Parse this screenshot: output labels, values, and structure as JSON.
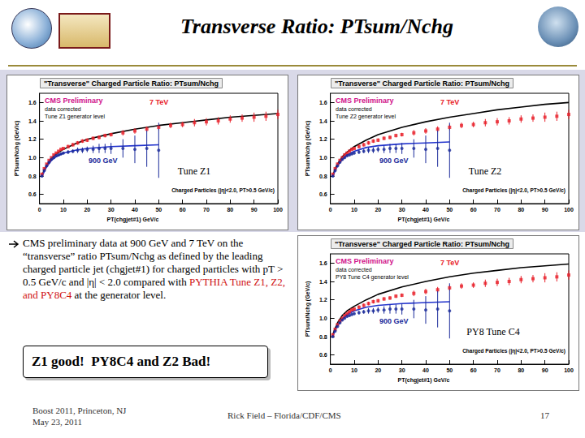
{
  "header": {
    "title": "Transverse Ratio: PTsum/Nchg"
  },
  "chart_data": [
    {
      "type": "scatter",
      "title": "\"Transverse\" Charged Particle Ratio: PTsum/Nchg",
      "x_label": "PT(chgjet#1) GeV/c",
      "y_label": "PTsum/Nchg (GeV/c)",
      "xlim": [
        0,
        100
      ],
      "xticks": [
        0,
        10,
        20,
        30,
        40,
        50,
        60,
        70,
        80,
        90,
        100
      ],
      "ylim": [
        0.5,
        1.7
      ],
      "yticks": [
        0.6,
        0.8,
        {
          "value": 1,
          "label": "1.0"
        },
        1.2,
        1.4,
        1.6
      ],
      "grid": false,
      "annotations": {
        "label": "CMS Preliminary",
        "note": "data corrected",
        "generator": "Tune Z1 generator level",
        "selection": "Charged Particles (|η|<2.0, PT>0.5 GeV/c)"
      },
      "overlay": "Tune Z1",
      "series": [
        {
          "type": "line",
          "line_style": "solid",
          "color": "#000000",
          "x": [
            1,
            2,
            3,
            5,
            7,
            10,
            15,
            20,
            30,
            40,
            50,
            60,
            70,
            80,
            90,
            100
          ],
          "values": [
            0.8,
            0.87,
            0.92,
            0.99,
            1.04,
            1.09,
            1.15,
            1.2,
            1.26,
            1.31,
            1.35,
            1.38,
            1.41,
            1.44,
            1.46,
            1.48
          ]
        },
        {
          "type": "line",
          "line_style": "solid",
          "color": "#2233cc",
          "x": [
            1,
            2,
            3,
            5,
            7,
            10,
            15,
            20,
            30,
            40,
            50
          ],
          "values": [
            0.79,
            0.85,
            0.9,
            0.97,
            1.01,
            1.05,
            1.08,
            1.1,
            1.12,
            1.13,
            1.14
          ]
        },
        {
          "name": "7 TeV",
          "type": "scatter",
          "marker": "square",
          "color": "#e8202a",
          "x": [
            1,
            2,
            3,
            4,
            5,
            6,
            7,
            8,
            9,
            10,
            12,
            14,
            16,
            18,
            20,
            22.5,
            25,
            27.5,
            30,
            35,
            40,
            45,
            50,
            55,
            60,
            65,
            70,
            75,
            80,
            85,
            90,
            95,
            100
          ],
          "values": [
            0.82,
            0.88,
            0.93,
            0.97,
            1.0,
            1.03,
            1.05,
            1.07,
            1.09,
            1.1,
            1.12,
            1.14,
            1.16,
            1.18,
            1.19,
            1.21,
            1.22,
            1.24,
            1.25,
            1.27,
            1.29,
            1.31,
            1.33,
            1.35,
            1.36,
            1.38,
            1.39,
            1.4,
            1.42,
            1.43,
            1.44,
            1.45,
            1.47
          ],
          "errors": [
            0.01,
            0.01,
            0.01,
            0.01,
            0.01,
            0.01,
            0.01,
            0.01,
            0.01,
            0.01,
            0.02,
            0.02,
            0.02,
            0.02,
            0.02,
            0.02,
            0.02,
            0.02,
            0.02,
            0.03,
            0.03,
            0.03,
            0.03,
            0.03,
            0.03,
            0.04,
            0.04,
            0.04,
            0.04,
            0.04,
            0.05,
            0.05,
            0.05
          ]
        },
        {
          "name": "900 GeV",
          "type": "scatter",
          "marker": "circle",
          "color": "#1a2a9a",
          "x": [
            1,
            2,
            3,
            4,
            5,
            6,
            7,
            8,
            9,
            10,
            12,
            14,
            16,
            18,
            20,
            22.5,
            25,
            27.5,
            30,
            35,
            40,
            45,
            50
          ],
          "values": [
            0.8,
            0.86,
            0.91,
            0.95,
            0.98,
            1.0,
            1.02,
            1.03,
            1.04,
            1.05,
            1.06,
            1.07,
            1.08,
            1.08,
            1.09,
            1.09,
            1.1,
            1.1,
            1.1,
            1.1,
            1.09,
            1.1,
            1.08
          ],
          "errors": [
            0.01,
            0.01,
            0.01,
            0.01,
            0.01,
            0.01,
            0.01,
            0.01,
            0.01,
            0.01,
            0.02,
            0.02,
            0.03,
            0.03,
            0.03,
            0.04,
            0.05,
            0.05,
            0.06,
            0.1,
            0.15,
            0.2,
            0.3
          ]
        }
      ]
    },
    {
      "type": "scatter",
      "title": "\"Transverse\" Charged Particle Ratio: PTsum/Nchg",
      "x_label": "PT(chgjet#1) GeV/c",
      "y_label": "PTsum/Nchg (GeV/c)",
      "xlim": [
        0,
        100
      ],
      "xticks": [
        0,
        10,
        20,
        30,
        40,
        50,
        60,
        70,
        80,
        90,
        100
      ],
      "ylim": [
        0.5,
        1.7
      ],
      "yticks": [
        0.6,
        0.8,
        {
          "value": 1,
          "label": "1.0"
        },
        1.2,
        1.4,
        1.6
      ],
      "grid": false,
      "annotations": {
        "label": "CMS Preliminary",
        "note": "data corrected",
        "generator": "Tune Z2 generator level",
        "selection": "Charged Particles (|η|<2.0, PT>0.5 GeV/c)"
      },
      "overlay": "Tune Z2",
      "series": [
        {
          "type": "line",
          "line_style": "solid",
          "color": "#000000",
          "x": [
            1,
            2,
            3,
            5,
            7,
            10,
            15,
            20,
            30,
            40,
            50,
            60,
            70,
            80,
            90,
            100
          ],
          "values": [
            0.8,
            0.88,
            0.93,
            1.01,
            1.06,
            1.12,
            1.19,
            1.25,
            1.33,
            1.39,
            1.44,
            1.48,
            1.52,
            1.55,
            1.58,
            1.6
          ]
        },
        {
          "type": "line",
          "line_style": "solid",
          "color": "#2233cc",
          "x": [
            1,
            2,
            3,
            5,
            7,
            10,
            15,
            20,
            30,
            40,
            50
          ],
          "values": [
            0.79,
            0.86,
            0.91,
            0.98,
            1.03,
            1.07,
            1.11,
            1.13,
            1.15,
            1.16,
            1.17
          ]
        },
        {
          "name": "7 TeV",
          "type": "scatter",
          "marker": "square",
          "color": "#e8202a",
          "x": [
            1,
            2,
            3,
            4,
            5,
            6,
            7,
            8,
            9,
            10,
            12,
            14,
            16,
            18,
            20,
            22.5,
            25,
            27.5,
            30,
            35,
            40,
            45,
            50,
            55,
            60,
            65,
            70,
            75,
            80,
            85,
            90,
            95,
            100
          ],
          "values": [
            0.82,
            0.88,
            0.93,
            0.97,
            1.0,
            1.03,
            1.05,
            1.07,
            1.09,
            1.1,
            1.12,
            1.14,
            1.16,
            1.18,
            1.19,
            1.21,
            1.22,
            1.24,
            1.25,
            1.27,
            1.29,
            1.31,
            1.33,
            1.35,
            1.36,
            1.38,
            1.39,
            1.4,
            1.42,
            1.43,
            1.44,
            1.45,
            1.47
          ],
          "errors": [
            0.01,
            0.01,
            0.01,
            0.01,
            0.01,
            0.01,
            0.01,
            0.01,
            0.01,
            0.01,
            0.02,
            0.02,
            0.02,
            0.02,
            0.02,
            0.02,
            0.02,
            0.02,
            0.02,
            0.03,
            0.03,
            0.03,
            0.03,
            0.03,
            0.03,
            0.04,
            0.04,
            0.04,
            0.04,
            0.04,
            0.05,
            0.05,
            0.05
          ]
        },
        {
          "name": "900 GeV",
          "type": "scatter",
          "marker": "circle",
          "color": "#1a2a9a",
          "x": [
            1,
            2,
            3,
            4,
            5,
            6,
            7,
            8,
            9,
            10,
            12,
            14,
            16,
            18,
            20,
            22.5,
            25,
            27.5,
            30,
            35,
            40,
            45,
            50
          ],
          "values": [
            0.8,
            0.86,
            0.91,
            0.95,
            0.98,
            1.0,
            1.02,
            1.03,
            1.04,
            1.05,
            1.06,
            1.07,
            1.08,
            1.08,
            1.09,
            1.09,
            1.1,
            1.1,
            1.1,
            1.1,
            1.09,
            1.1,
            1.08
          ],
          "errors": [
            0.01,
            0.01,
            0.01,
            0.01,
            0.01,
            0.01,
            0.01,
            0.01,
            0.01,
            0.01,
            0.02,
            0.02,
            0.03,
            0.03,
            0.03,
            0.04,
            0.05,
            0.05,
            0.06,
            0.1,
            0.15,
            0.2,
            0.3
          ]
        }
      ]
    },
    {
      "type": "scatter",
      "title": "\"Transverse\" Charged Particle Ratio: PTsum/Nchg",
      "x_label": "PT(chgjet#1) GeV/c",
      "y_label": "PTsum/Nchg (GeV/c)",
      "xlim": [
        0,
        100
      ],
      "xticks": [
        0,
        10,
        20,
        30,
        40,
        50,
        60,
        70,
        80,
        90,
        100
      ],
      "ylim": [
        0.5,
        1.7
      ],
      "yticks": [
        0.6,
        0.8,
        {
          "value": 1,
          "label": "1.0"
        },
        1.2,
        1.4,
        1.6
      ],
      "grid": false,
      "annotations": {
        "label": "CMS Preliminary",
        "note": "data corrected",
        "generator": "PY8 Tune C4 generator level",
        "selection": "Charged Particles (|η|<2.0, PT>0.5 GeV/c)"
      },
      "overlay": "PY8 Tune C4",
      "series": [
        {
          "type": "line",
          "line_style": "solid",
          "color": "#000000",
          "x": [
            1,
            2,
            3,
            5,
            7,
            10,
            15,
            20,
            30,
            40,
            50,
            60,
            70,
            80,
            90,
            100
          ],
          "values": [
            0.82,
            0.89,
            0.95,
            1.03,
            1.08,
            1.13,
            1.2,
            1.26,
            1.34,
            1.4,
            1.45,
            1.49,
            1.52,
            1.55,
            1.57,
            1.59
          ]
        },
        {
          "type": "line",
          "line_style": "solid",
          "color": "#2233cc",
          "x": [
            1,
            2,
            3,
            5,
            7,
            10,
            15,
            20,
            30,
            40,
            50
          ],
          "values": [
            0.8,
            0.87,
            0.92,
            0.99,
            1.04,
            1.08,
            1.12,
            1.14,
            1.16,
            1.17,
            1.18
          ]
        },
        {
          "name": "7 TeV",
          "type": "scatter",
          "marker": "square",
          "color": "#e8202a",
          "x": [
            1,
            2,
            3,
            4,
            5,
            6,
            7,
            8,
            9,
            10,
            12,
            14,
            16,
            18,
            20,
            22.5,
            25,
            27.5,
            30,
            35,
            40,
            45,
            50,
            55,
            60,
            65,
            70,
            75,
            80,
            85,
            90,
            95,
            100
          ],
          "values": [
            0.82,
            0.88,
            0.93,
            0.97,
            1.0,
            1.03,
            1.05,
            1.07,
            1.09,
            1.1,
            1.12,
            1.14,
            1.16,
            1.18,
            1.19,
            1.21,
            1.22,
            1.24,
            1.25,
            1.27,
            1.29,
            1.31,
            1.33,
            1.35,
            1.36,
            1.38,
            1.39,
            1.4,
            1.42,
            1.43,
            1.44,
            1.45,
            1.47
          ],
          "errors": [
            0.01,
            0.01,
            0.01,
            0.01,
            0.01,
            0.01,
            0.01,
            0.01,
            0.01,
            0.01,
            0.02,
            0.02,
            0.02,
            0.02,
            0.02,
            0.02,
            0.02,
            0.02,
            0.02,
            0.03,
            0.03,
            0.03,
            0.03,
            0.03,
            0.03,
            0.04,
            0.04,
            0.04,
            0.04,
            0.04,
            0.05,
            0.05,
            0.05
          ]
        },
        {
          "name": "900 GeV",
          "type": "scatter",
          "marker": "circle",
          "color": "#1a2a9a",
          "x": [
            1,
            2,
            3,
            4,
            5,
            6,
            7,
            8,
            9,
            10,
            12,
            14,
            16,
            18,
            20,
            22.5,
            25,
            27.5,
            30,
            35,
            40,
            45,
            50
          ],
          "values": [
            0.8,
            0.86,
            0.91,
            0.95,
            0.98,
            1.0,
            1.02,
            1.03,
            1.04,
            1.05,
            1.06,
            1.07,
            1.08,
            1.08,
            1.09,
            1.09,
            1.1,
            1.1,
            1.1,
            1.1,
            1.09,
            1.1,
            1.08
          ],
          "errors": [
            0.01,
            0.01,
            0.01,
            0.01,
            0.01,
            0.01,
            0.01,
            0.01,
            0.01,
            0.01,
            0.02,
            0.02,
            0.03,
            0.03,
            0.03,
            0.04,
            0.05,
            0.05,
            0.06,
            0.1,
            0.15,
            0.2,
            0.3
          ]
        }
      ]
    }
  ],
  "bullet": {
    "text": "CMS preliminary data at 900 GeV and 7 TeV on the “transverse” ratio PTsum/Nchg as defined by the leading charged particle jet (chgjet#1) for charged particles with pT > 0.5 GeV/c and |η| < 2.0 compared with ",
    "highlight": "PYTHIA Tune Z1, Z2, and PY8C4",
    "tail": " at the generator level."
  },
  "conclusion": "Z1 good!  PY8C4 and Z2 Bad!",
  "footer": {
    "event": "Boost 2011, Princeton, NJ",
    "date": "May 23, 2011",
    "author": "Rick Field – Florida/CDF/CMS",
    "page": "17"
  }
}
